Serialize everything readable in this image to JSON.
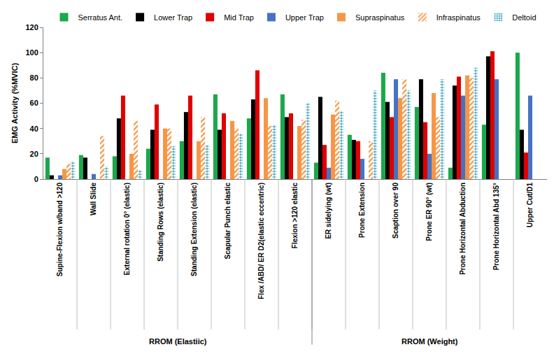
{
  "chart_data": {
    "type": "bar",
    "y_label": "EMG Activity (%MVIC)",
    "categories": [
      "Supine-Flexion w/band >120",
      "Wall Slide",
      "External rotation 0° (elastic)",
      "Standing Rows (elastic)",
      "Standing Extension (elastic)",
      "Scapular Punch elastic",
      "Flex /ABD/ ER D2(elastic eccentric)",
      "Flexion >120 elastic",
      "ER sidelying (wt)",
      "Prone Extension",
      "Scaption over 90",
      "Prone ER 90° (wt)",
      "Prone Horizontal Abduction",
      "Prone Horizontal Abd 135°",
      "Upper Cut/D1"
    ],
    "groups": [
      {
        "label": "RROM (Elastiic)",
        "count": 8
      },
      {
        "label": "RROM (Weight)",
        "count": 7
      }
    ],
    "series": [
      {
        "name": "Serratus Ant.",
        "color": "#1aa84a",
        "marker": "solid",
        "values": [
          17,
          19,
          18,
          24,
          30,
          67,
          48,
          67,
          13,
          35,
          84,
          57,
          9,
          43,
          100
        ]
      },
      {
        "name": "Lower Trap",
        "color": "#000000",
        "marker": "solid",
        "values": [
          3,
          17,
          48,
          39,
          53,
          39,
          63,
          49,
          65,
          31,
          61,
          79,
          74,
          97,
          39
        ]
      },
      {
        "name": "Mid Trap",
        "color": "#e00000",
        "marker": "solid",
        "values": [
          null,
          null,
          66,
          59,
          66,
          52,
          86,
          52,
          27,
          30,
          49,
          45,
          81,
          101,
          21
        ]
      },
      {
        "name": "Upper Trap",
        "color": "#4472c4",
        "marker": "solid",
        "values": [
          3,
          4,
          null,
          null,
          null,
          null,
          null,
          null,
          9,
          16,
          79,
          20,
          66,
          79,
          66
        ]
      },
      {
        "name": "Supraspinatus",
        "color": "#f79646",
        "marker": "solid",
        "values": [
          8,
          null,
          20,
          40,
          30,
          46,
          64,
          42,
          51,
          null,
          64,
          68,
          82,
          null,
          null
        ]
      },
      {
        "name": "Infraspinatus",
        "color": "#f79646",
        "marker": "hatch",
        "values": [
          12,
          34,
          46,
          40,
          49,
          40,
          42,
          47,
          62,
          30,
          79,
          49,
          80,
          null,
          null
        ]
      },
      {
        "name": "Deltoid",
        "color": "#4bacc6",
        "marker": "dots",
        "values": [
          14,
          10,
          7,
          26,
          27,
          36,
          43,
          60,
          54,
          70,
          70,
          79,
          88,
          null,
          null
        ]
      }
    ],
    "ylim": [
      0,
      120
    ],
    "yticks": [
      0,
      20,
      40,
      60,
      80,
      100,
      120
    ],
    "grid": false,
    "legend": "top"
  }
}
